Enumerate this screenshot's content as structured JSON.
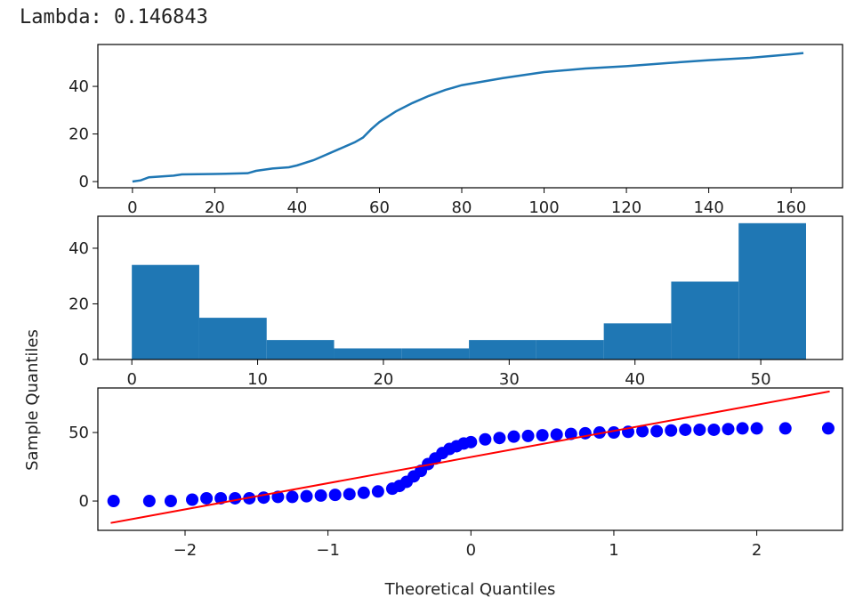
{
  "header": {
    "text": "Lambda: 0.146843"
  },
  "chart_data": [
    {
      "type": "line",
      "x": [
        0,
        2,
        4,
        10,
        12,
        20,
        28,
        30,
        34,
        38,
        40,
        44,
        46,
        50,
        54,
        56,
        58,
        60,
        64,
        68,
        72,
        76,
        80,
        90,
        100,
        110,
        120,
        130,
        140,
        150,
        160,
        163
      ],
      "values": [
        0,
        0.5,
        1.8,
        2.5,
        3,
        3.2,
        3.5,
        4.5,
        5.5,
        6,
        6.8,
        9,
        10.5,
        13.5,
        16.5,
        18.5,
        22,
        25,
        29.5,
        33,
        36,
        38.5,
        40.5,
        43.5,
        46,
        47.5,
        48.5,
        49.8,
        51,
        52,
        53.5,
        54
      ],
      "color": "#1f77b4",
      "xlim": [
        -8.4,
        172.5
      ],
      "ylim": [
        -2.6,
        57.6
      ],
      "xticks": [
        0,
        20,
        40,
        60,
        80,
        100,
        120,
        140,
        160
      ],
      "yticks": [
        0,
        20,
        40
      ]
    },
    {
      "type": "histogram",
      "bins": [
        0,
        5.36,
        10.72,
        16.08,
        21.44,
        26.8,
        32.16,
        37.52,
        42.88,
        48.24,
        53.6
      ],
      "values": [
        34,
        15,
        7,
        4,
        4,
        7,
        7,
        13,
        28,
        49
      ],
      "color": "#1f77b4",
      "xlim": [
        -2.7,
        56.5
      ],
      "ylim": [
        0,
        51.5
      ],
      "xticks": [
        0,
        10,
        20,
        30,
        40,
        50
      ],
      "yticks": [
        0,
        20,
        40
      ]
    },
    {
      "type": "scatter",
      "x_label": "Theoretical Quantiles",
      "y_label": "Sample Quantiles",
      "series": [
        {
          "color": "#0000ff",
          "x": [
            -2.5,
            -2.25,
            -2.1,
            -1.95,
            -1.85,
            -1.75,
            -1.65,
            -1.55,
            -1.45,
            -1.35,
            -1.25,
            -1.15,
            -1.05,
            -0.95,
            -0.85,
            -0.75,
            -0.65,
            -0.55,
            -0.5,
            -0.45,
            -0.4,
            -0.35,
            -0.3,
            -0.25,
            -0.2,
            -0.15,
            -0.1,
            -0.05,
            0,
            0.1,
            0.2,
            0.3,
            0.4,
            0.5,
            0.6,
            0.7,
            0.8,
            0.9,
            1.0,
            1.1,
            1.2,
            1.3,
            1.4,
            1.5,
            1.6,
            1.7,
            1.8,
            1.9,
            2.0,
            2.2,
            2.5
          ],
          "values": [
            0,
            0,
            0,
            1,
            2,
            2,
            2,
            2,
            2.5,
            3,
            3,
            3.5,
            4,
            4.5,
            5,
            6,
            7,
            9,
            11,
            14,
            18,
            22,
            27,
            31,
            35,
            38,
            40,
            42,
            43,
            45,
            46,
            47,
            47.5,
            48,
            48.5,
            49,
            49.5,
            50,
            50,
            50.5,
            51,
            51,
            51.5,
            52,
            52,
            52,
            52.5,
            53,
            53,
            53,
            53
          ]
        }
      ],
      "fit_line": {
        "color": "#ff0000",
        "x": [
          -2.52,
          2.51
        ],
        "values": [
          -16,
          80
        ]
      },
      "xlim": [
        -2.61,
        2.6
      ],
      "ylim": [
        -21.4,
        82.5
      ],
      "xticks": [
        {
          "value": -2,
          "label": "−2"
        },
        {
          "value": -1,
          "label": "−1"
        },
        0,
        1,
        2
      ],
      "yticks": [
        0,
        50
      ]
    }
  ]
}
